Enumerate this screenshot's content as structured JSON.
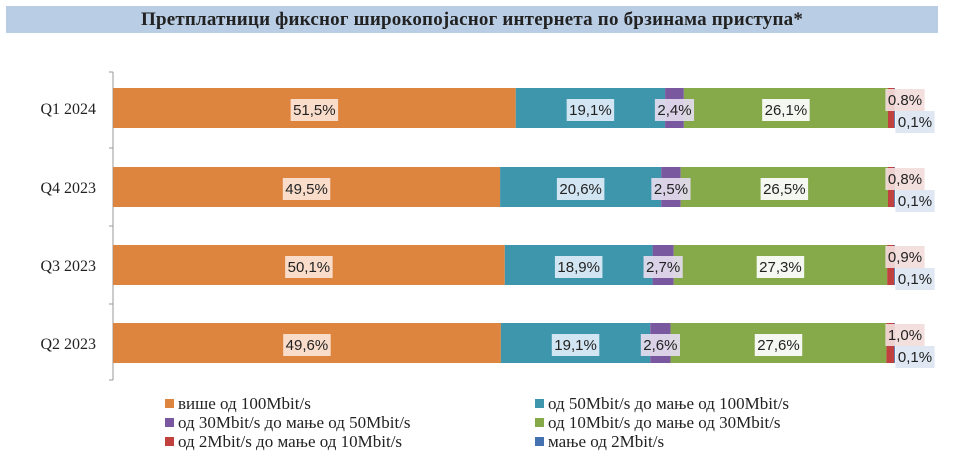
{
  "chart_data": {
    "type": "bar",
    "orientation": "horizontal-stacked-100",
    "title": "Претплатници фиксног широкопојасног интернета по брзинама приступа*",
    "categories": [
      "Q1 2024",
      "Q4 2023",
      "Q3 2023",
      "Q2 2023"
    ],
    "series": [
      {
        "name": "више од 100Mbit/s",
        "color": "#dd843f",
        "bg": "#fbe5d6",
        "values": [
          51.5,
          49.5,
          50.1,
          49.6
        ],
        "labels": [
          "51,5%",
          "49,5%",
          "50,1%",
          "49,6%"
        ]
      },
      {
        "name": "од 50Mbit/s до мање од 100Mbit/s",
        "color": "#3e96ad",
        "bg": "#deebf7",
        "values": [
          19.1,
          20.6,
          18.9,
          19.1
        ],
        "labels": [
          "19,1%",
          "20,6%",
          "18,9%",
          "19,1%"
        ]
      },
      {
        "name": "од 30Mbit/s до мање од 50Mbit/s",
        "color": "#7a58a0",
        "bg": "#e4dcee",
        "values": [
          2.4,
          2.5,
          2.7,
          2.6
        ],
        "labels": [
          "2,4%",
          "2,5%",
          "2,7%",
          "2,6%"
        ]
      },
      {
        "name": "од 10Mbit/s до мање од 30Mbit/s",
        "color": "#86a94a",
        "bg": "#ffffff",
        "values": [
          26.1,
          26.5,
          27.3,
          27.6
        ],
        "labels": [
          "26,1%",
          "26,5%",
          "27,3%",
          "27,6%"
        ]
      },
      {
        "name": "од 2Mbit/s до мање од 10Mbit/s",
        "color": "#c0413e",
        "bg": "#f2dcdb",
        "values": [
          0.8,
          0.8,
          0.9,
          1.0
        ],
        "labels": [
          "0.8%",
          "0,8%",
          "0,9%",
          "1,0%"
        ]
      },
      {
        "name": "мање од 2Mbit/s",
        "color": "#4472b0",
        "bg": "#dbe5f1",
        "values": [
          0.1,
          0.1,
          0.1,
          0.1
        ],
        "labels": [
          "0,1%",
          "0,1%",
          "0,1%",
          "0,1%"
        ]
      }
    ],
    "xlim": [
      0,
      100
    ],
    "grid": false,
    "legend": "bottom"
  }
}
